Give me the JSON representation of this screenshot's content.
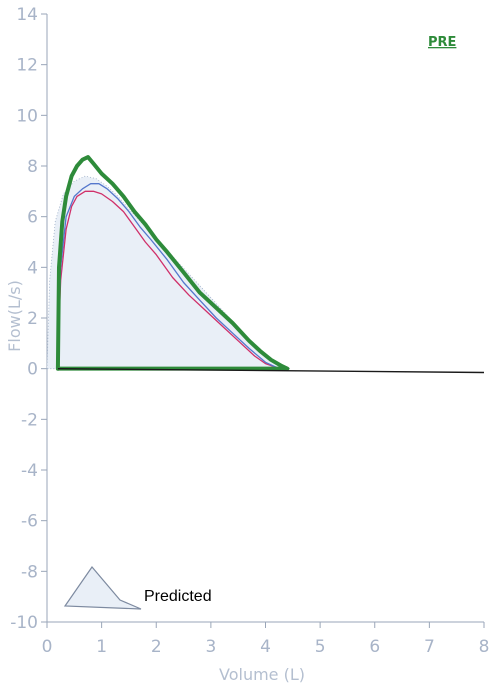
{
  "chart_data": {
    "type": "line",
    "xlabel": "Volume (L)",
    "ylabel": "Flow(L/s)",
    "xlim": [
      0,
      8
    ],
    "ylim": [
      -10,
      14
    ],
    "x_ticks": [
      "0",
      "1",
      "2",
      "3",
      "4",
      "5",
      "6",
      "7",
      "8"
    ],
    "y_ticks": [
      "14",
      "12",
      "10",
      "8",
      "6",
      "4",
      "2",
      "0",
      "-2",
      "-4",
      "-6",
      "-8",
      "-10"
    ],
    "annotation": "PRE",
    "legend": [
      {
        "label": "Predicted"
      }
    ],
    "colors": {
      "predicted_fill": "#e9eff7",
      "predicted_outline": "#9fb0c8",
      "trial_green": "#2e8b3a",
      "trial_pink": "#d0306a",
      "trial_blue": "#5577cc",
      "baseline": "#1a1a1a",
      "axis": "#9aa6b8"
    },
    "series": [
      {
        "role": "predicted",
        "x": [
          0.0,
          0.05,
          0.15,
          0.3,
          0.5,
          0.7,
          0.9,
          1.1,
          1.3,
          1.5,
          1.8,
          2.1,
          2.4,
          2.7,
          3.0,
          3.3,
          3.6,
          3.9,
          4.1,
          4.3,
          4.45
        ],
        "y": [
          0.0,
          3.5,
          5.8,
          6.9,
          7.4,
          7.6,
          7.5,
          7.2,
          6.8,
          6.3,
          5.6,
          4.9,
          4.2,
          3.5,
          2.8,
          2.1,
          1.4,
          0.7,
          0.3,
          0.05,
          0.0
        ]
      },
      {
        "role": "trial",
        "color": "#d0306a",
        "x": [
          0.2,
          0.25,
          0.35,
          0.45,
          0.55,
          0.7,
          0.85,
          1.0,
          1.2,
          1.4,
          1.6,
          1.8,
          2.0,
          2.3,
          2.6,
          2.9,
          3.2,
          3.5,
          3.8,
          4.0,
          4.2,
          4.35
        ],
        "y": [
          0.8,
          3.5,
          5.5,
          6.4,
          6.8,
          7.0,
          7.0,
          6.9,
          6.6,
          6.2,
          5.6,
          5.0,
          4.5,
          3.6,
          2.9,
          2.3,
          1.7,
          1.1,
          0.5,
          0.2,
          0.05,
          0.0
        ]
      },
      {
        "role": "trial",
        "color": "#5577cc",
        "x": [
          0.2,
          0.25,
          0.35,
          0.5,
          0.65,
          0.8,
          0.95,
          1.1,
          1.3,
          1.5,
          1.7,
          1.9,
          2.2,
          2.5,
          2.8,
          3.1,
          3.4,
          3.7,
          4.0,
          4.2,
          4.35
        ],
        "y": [
          0.8,
          4.0,
          6.0,
          6.8,
          7.1,
          7.3,
          7.3,
          7.1,
          6.7,
          6.2,
          5.6,
          5.1,
          4.3,
          3.4,
          2.7,
          2.0,
          1.4,
          0.8,
          0.25,
          0.05,
          0.0
        ]
      },
      {
        "role": "trial",
        "color": "#2e8b3a",
        "x": [
          0.2,
          0.22,
          0.28,
          0.35,
          0.45,
          0.55,
          0.65,
          0.75,
          0.85,
          1.0,
          1.2,
          1.4,
          1.6,
          1.8,
          2.0,
          2.2,
          2.5,
          2.8,
          3.1,
          3.4,
          3.7,
          3.9,
          4.1,
          4.3,
          4.4
        ],
        "y": [
          0.0,
          4.0,
          5.8,
          6.8,
          7.6,
          8.0,
          8.25,
          8.35,
          8.1,
          7.7,
          7.3,
          6.8,
          6.2,
          5.7,
          5.1,
          4.6,
          3.8,
          3.0,
          2.4,
          1.8,
          1.1,
          0.7,
          0.35,
          0.1,
          0.0
        ]
      },
      {
        "role": "baseline",
        "x": [
          0.2,
          8.0
        ],
        "y": [
          0.0,
          -0.15
        ]
      }
    ]
  }
}
